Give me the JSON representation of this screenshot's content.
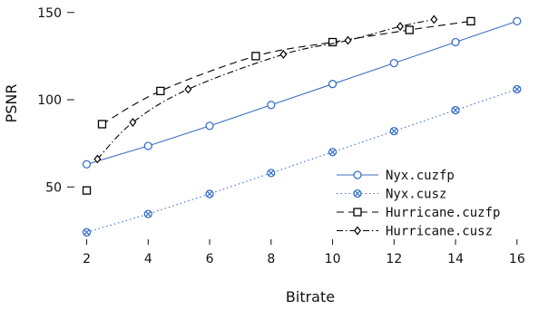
{
  "chart_data": {
    "type": "line",
    "title": "",
    "xlabel": "Bitrate",
    "ylabel": "PSNR",
    "xlim": [
      1.6,
      16.3
    ],
    "ylim": [
      20,
      153
    ],
    "xticks": [
      2,
      4,
      6,
      8,
      10,
      12,
      14,
      16
    ],
    "yticks": [
      50,
      100,
      150
    ],
    "grid": false,
    "legend_position": "lower-right",
    "series": [
      {
        "name": "Nyx.cuzfp",
        "color": "#3a6fc4",
        "line_style": "solid",
        "marker": "circle",
        "x": [
          2,
          4,
          6,
          8,
          10,
          12,
          14,
          16
        ],
        "y": [
          63,
          73.5,
          85,
          97,
          109,
          121,
          133,
          145
        ]
      },
      {
        "name": "Nyx.cusz",
        "color": "#3a6fc4",
        "line_style": "dotted",
        "marker": "circle-x",
        "x": [
          2,
          4,
          6,
          8,
          10,
          12,
          14,
          16
        ],
        "y": [
          24,
          34.5,
          46,
          58,
          70,
          82,
          94,
          106
        ]
      },
      {
        "name": "Hurricane.cuzfp",
        "color": "#000000",
        "line_style": "dashed",
        "marker": "square",
        "x": [
          2,
          2.5,
          4.4,
          7.5,
          10,
          12.5,
          14.5
        ],
        "y": [
          48,
          86,
          105,
          125,
          133,
          140,
          145
        ]
      },
      {
        "name": "Hurricane.cusz",
        "color": "#000000",
        "line_style": "dashdot",
        "marker": "diamond",
        "x": [
          2.35,
          3.5,
          5.3,
          8.4,
          10.5,
          12.2,
          13.3
        ],
        "y": [
          66,
          87,
          106,
          126,
          134,
          142,
          146
        ]
      }
    ]
  }
}
